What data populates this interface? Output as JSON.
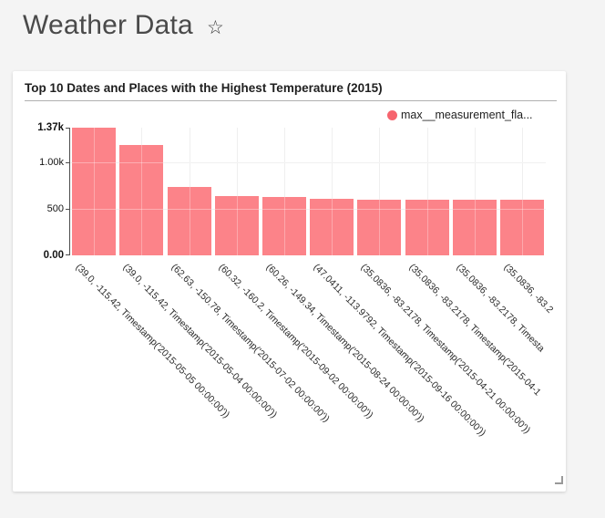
{
  "page": {
    "background_color": "#f4f4f4"
  },
  "header": {
    "title": "Weather Data"
  },
  "icons": {
    "star": "☆"
  },
  "chart_data": {
    "type": "bar",
    "title": "Top 10 Dates and Places with the Highest Temperature (2015)",
    "legend": {
      "label": "max__measurement_fla...",
      "dot_color": "#f6646e",
      "position": "top-right"
    },
    "bar_color": "#fc8389",
    "grid_color": "#e8e8e8",
    "axis_color": "#4d4d4d",
    "grid": true,
    "xlabel": "",
    "ylabel": "",
    "y_axis": {
      "min": 0,
      "max": 1370,
      "ticks": [
        {
          "label": "1.37k",
          "value": 1370,
          "bold": true,
          "gridline": false
        },
        {
          "label": "1.00k",
          "value": 1000,
          "bold": false,
          "gridline": true
        },
        {
          "label": "500",
          "value": 500,
          "bold": false,
          "gridline": true
        },
        {
          "label": "0.00",
          "value": 0,
          "bold": true,
          "gridline": false
        }
      ]
    },
    "categories": [
      "(39.0, -115.42, Timestamp('2015-05-05 00:00:00'))",
      "(39.0, -115.42, Timestamp('2015-05-04 00:00:00'))",
      "(62.63, -150.78, Timestamp('2015-07-02 00:00:00'))",
      "(60.32, -160.2, Timestamp('2015-09-02 00:00:00'))",
      "(60.26, -149.34, Timestamp('2015-08-24 00:00:00'))",
      "(47.0411, -113.9792, Timestamp('2015-09-16 00:00:00'))",
      "(35.0836, -83.2178, Timestamp('2015-04-21 00:00:00'))",
      "(35.0836, -83.2178, Timestamp('2015-04-1",
      "(35.0836, -83.2178, Timesta",
      "(35.0836, -83.2"
    ],
    "values": [
      1370,
      1180,
      730,
      640,
      625,
      605,
      597,
      596,
      595,
      595
    ],
    "series_name": "max__measurement_fla..."
  }
}
